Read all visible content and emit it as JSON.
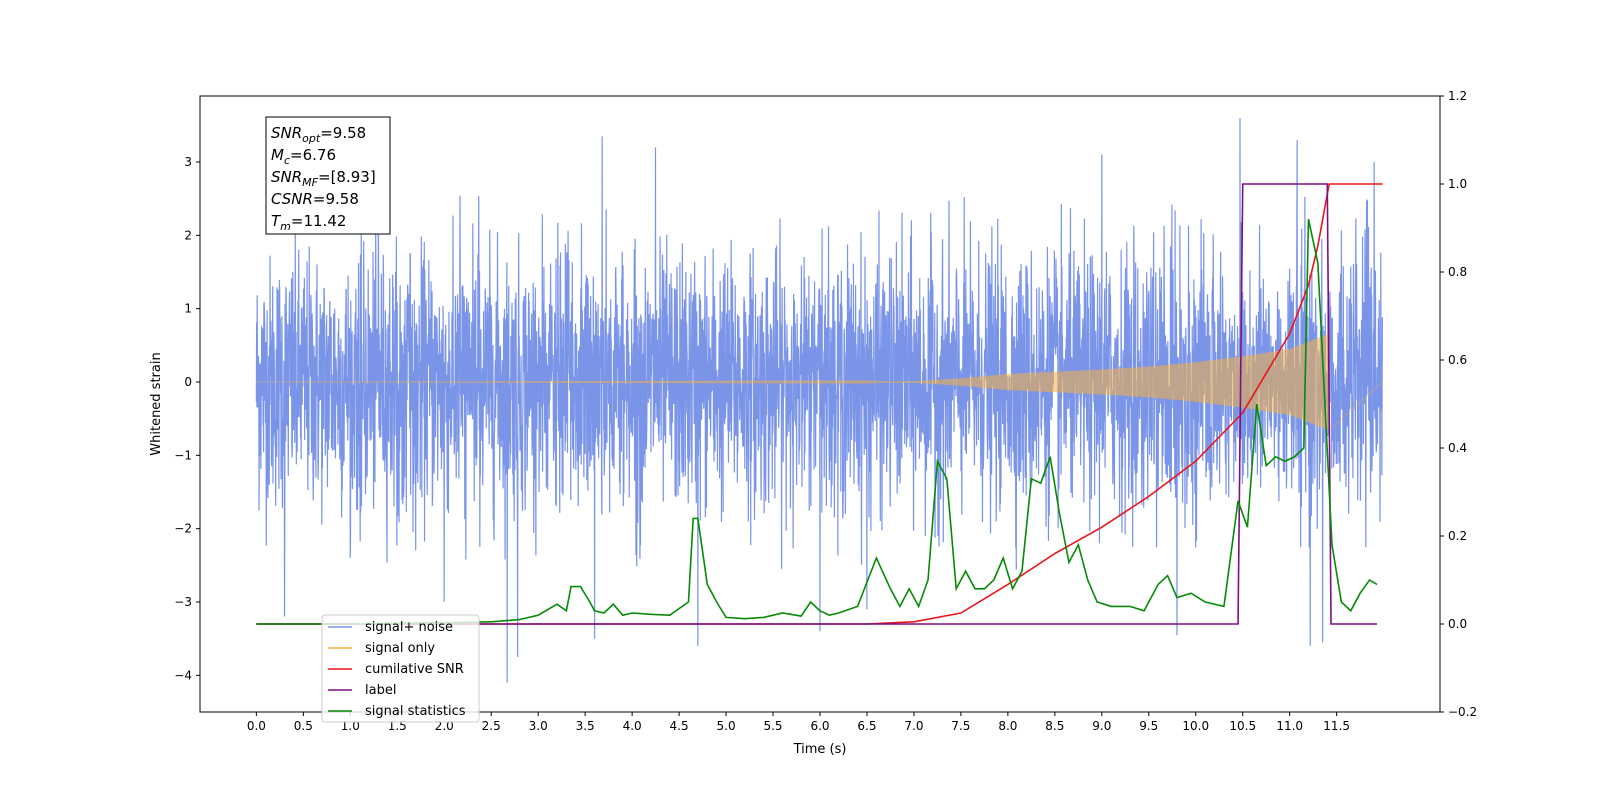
{
  "chart_data": {
    "type": "line",
    "xlabel": "Time (s)",
    "ylabel_left": "Whitened strain",
    "ylabel_right": "",
    "xlim": [
      -0.6,
      12.6
    ],
    "ylim_left": [
      -4.5,
      3.9
    ],
    "ylim_right": [
      -0.2,
      1.2
    ],
    "x_ticks": [
      0.0,
      0.5,
      1.0,
      1.5,
      2.0,
      2.5,
      3.0,
      3.5,
      4.0,
      4.5,
      5.0,
      5.5,
      6.0,
      6.5,
      7.0,
      7.5,
      8.0,
      8.5,
      9.0,
      9.5,
      10.0,
      10.5,
      11.0,
      11.5
    ],
    "x_tick_labels": [
      "0.0",
      "0.5",
      "1.0",
      "1.5",
      "2.0",
      "2.5",
      "3.0",
      "3.5",
      "4.0",
      "4.5",
      "5.0",
      "5.5",
      "6.0",
      "6.5",
      "7.0",
      "7.5",
      "8.0",
      "8.5",
      "9.0",
      "9.5",
      "10.0",
      "10.5",
      "11.0",
      "11.5"
    ],
    "y_left_ticks": [
      -4,
      -3,
      -2,
      -1,
      0,
      1,
      2,
      3
    ],
    "y_left_tick_labels": [
      "−4",
      "−3",
      "−2",
      "−1",
      "0",
      "1",
      "2",
      "3"
    ],
    "y_right_ticks": [
      -0.2,
      0.0,
      0.2,
      0.4,
      0.6,
      0.8,
      1.0,
      1.2
    ],
    "y_right_tick_labels": [
      "−0.2",
      "0.0",
      "0.2",
      "0.4",
      "0.6",
      "0.8",
      "1.0",
      "1.2"
    ],
    "grid": false,
    "legend_position": "lower-left",
    "annotation_box": {
      "position": "top-left",
      "lines": [
        {
          "base": "SNR",
          "sub": "opt",
          "value": "=9.58"
        },
        {
          "base": "M",
          "sub": "c",
          "value": "=6.76"
        },
        {
          "base": "SNR",
          "sub": "MF",
          "value": "=[8.93]"
        },
        {
          "base": "CSNR",
          "sub": "",
          "value": "=9.58"
        },
        {
          "base": "T",
          "sub": "m",
          "value": "=11.42"
        }
      ]
    },
    "series": [
      {
        "name": "signal+ noise",
        "axis": "left",
        "color": "#7a94e8",
        "style": "dense-noise",
        "x_range": [
          0.0,
          11.99
        ],
        "envelope_abs_typical": 2.3,
        "spikes": [
          {
            "x": 0.3,
            "y": -3.2
          },
          {
            "x": 1.3,
            "y": 2.8
          },
          {
            "x": 2.0,
            "y": -3.0
          },
          {
            "x": 2.67,
            "y": -4.1
          },
          {
            "x": 2.78,
            "y": -3.75
          },
          {
            "x": 3.6,
            "y": -3.5
          },
          {
            "x": 3.68,
            "y": 3.35
          },
          {
            "x": 4.25,
            "y": 3.2
          },
          {
            "x": 4.7,
            "y": -3.6
          },
          {
            "x": 6.0,
            "y": -3.4
          },
          {
            "x": 6.5,
            "y": -3.1
          },
          {
            "x": 9.0,
            "y": 3.1
          },
          {
            "x": 9.8,
            "y": -3.45
          },
          {
            "x": 10.47,
            "y": 3.6
          },
          {
            "x": 11.08,
            "y": 3.3
          },
          {
            "x": 11.22,
            "y": -3.6
          },
          {
            "x": 11.35,
            "y": -3.55
          },
          {
            "x": 11.9,
            "y": 3.0
          }
        ]
      },
      {
        "name": "signal only",
        "axis": "left",
        "color": "#f5b041",
        "style": "chirp",
        "x_range": [
          0.0,
          11.42
        ],
        "envelope": {
          "x": [
            0.0,
            7.0,
            7.5,
            8.0,
            8.5,
            9.0,
            9.5,
            10.0,
            10.5,
            11.0,
            11.3,
            11.42
          ],
          "amp": [
            0.0,
            0.01,
            0.05,
            0.11,
            0.14,
            0.17,
            0.21,
            0.27,
            0.35,
            0.45,
            0.6,
            0.66
          ]
        }
      },
      {
        "name": "cumilative SNR",
        "axis": "right",
        "color": "#e8161b",
        "x": [
          0.0,
          6.5,
          7.0,
          7.5,
          8.0,
          8.5,
          9.0,
          9.5,
          10.0,
          10.5,
          11.0,
          11.2,
          11.3,
          11.42,
          11.99
        ],
        "y": [
          0.0,
          0.0,
          0.005,
          0.025,
          0.09,
          0.16,
          0.22,
          0.29,
          0.37,
          0.48,
          0.66,
          0.77,
          0.86,
          1.0,
          1.0
        ]
      },
      {
        "name": "label",
        "axis": "right",
        "color": "#7d0f80",
        "x": [
          0.0,
          10.45,
          10.5,
          11.4,
          11.44,
          11.93
        ],
        "y": [
          0.0,
          0.0,
          1.0,
          1.0,
          0.0,
          0.0
        ]
      },
      {
        "name": "signal statistics",
        "axis": "right",
        "color": "#078a07",
        "x": [
          0.0,
          0.5,
          1.0,
          1.5,
          2.0,
          2.5,
          2.8,
          3.0,
          3.2,
          3.3,
          3.35,
          3.45,
          3.55,
          3.6,
          3.7,
          3.8,
          3.9,
          4.0,
          4.2,
          4.4,
          4.6,
          4.65,
          4.7,
          4.8,
          4.9,
          5.0,
          5.2,
          5.4,
          5.6,
          5.8,
          5.9,
          6.0,
          6.1,
          6.2,
          6.4,
          6.6,
          6.75,
          6.85,
          6.95,
          7.05,
          7.15,
          7.25,
          7.35,
          7.45,
          7.55,
          7.65,
          7.75,
          7.85,
          7.95,
          8.05,
          8.15,
          8.25,
          8.35,
          8.45,
          8.55,
          8.65,
          8.75,
          8.85,
          8.95,
          9.1,
          9.3,
          9.45,
          9.6,
          9.7,
          9.8,
          9.95,
          10.1,
          10.3,
          10.45,
          10.55,
          10.65,
          10.75,
          10.85,
          10.95,
          11.05,
          11.15,
          11.2,
          11.3,
          11.45,
          11.55,
          11.65,
          11.75,
          11.85,
          11.93
        ],
        "y": [
          0.0,
          0.0,
          0.0,
          0.002,
          0.003,
          0.005,
          0.01,
          0.02,
          0.045,
          0.03,
          0.085,
          0.085,
          0.05,
          0.03,
          0.025,
          0.045,
          0.02,
          0.025,
          0.022,
          0.02,
          0.05,
          0.24,
          0.24,
          0.09,
          0.05,
          0.015,
          0.012,
          0.015,
          0.025,
          0.018,
          0.05,
          0.03,
          0.02,
          0.025,
          0.04,
          0.15,
          0.08,
          0.04,
          0.08,
          0.04,
          0.1,
          0.37,
          0.33,
          0.08,
          0.12,
          0.08,
          0.08,
          0.1,
          0.15,
          0.08,
          0.12,
          0.33,
          0.32,
          0.38,
          0.25,
          0.14,
          0.18,
          0.1,
          0.05,
          0.04,
          0.04,
          0.03,
          0.09,
          0.11,
          0.06,
          0.07,
          0.05,
          0.04,
          0.28,
          0.22,
          0.5,
          0.36,
          0.38,
          0.37,
          0.38,
          0.4,
          0.92,
          0.82,
          0.18,
          0.05,
          0.03,
          0.07,
          0.1,
          0.09
        ]
      }
    ]
  }
}
